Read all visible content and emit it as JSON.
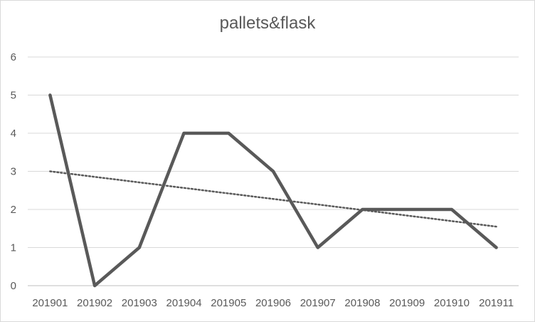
{
  "chart_data": {
    "type": "line",
    "title": "pallets&flask",
    "xlabel": "",
    "ylabel": "",
    "categories": [
      "201901",
      "201902",
      "201903",
      "201904",
      "201905",
      "201906",
      "201907",
      "201908",
      "201909",
      "201910",
      "201911"
    ],
    "series": [
      {
        "values": [
          5,
          0,
          1,
          4,
          4,
          3,
          1,
          2,
          2,
          2,
          1
        ],
        "color": "#595959"
      }
    ],
    "trendline": {
      "type": "linear",
      "style": "dotted",
      "color": "#595959",
      "start": 3.0,
      "end": 1.55
    },
    "ylim": [
      0,
      6
    ],
    "yticks": [
      0,
      1,
      2,
      3,
      4,
      5,
      6
    ],
    "grid": true,
    "legend": "none"
  }
}
